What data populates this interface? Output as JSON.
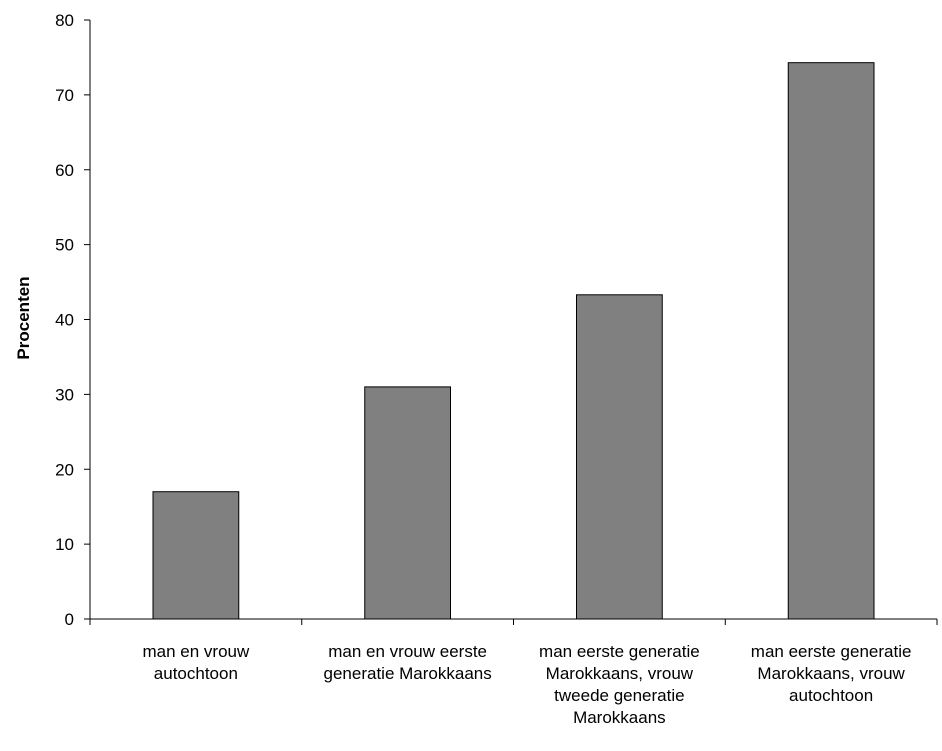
{
  "chart_data": {
    "type": "bar",
    "title": "",
    "xlabel": "",
    "ylabel": "Procenten",
    "ylim": [
      0,
      80
    ],
    "yticks": [
      0,
      10,
      20,
      30,
      40,
      50,
      60,
      70,
      80
    ],
    "grid": false,
    "categories": [
      [
        "man en vrouw",
        "autochtoon"
      ],
      [
        "man en vrouw eerste",
        "generatie Marokkaans"
      ],
      [
        "man eerste generatie",
        "Marokkaans, vrouw",
        "tweede generatie",
        "Marokkaans"
      ],
      [
        "man eerste generatie",
        "Marokkaans, vrouw",
        "autochtoon"
      ]
    ],
    "values": [
      17,
      31,
      43.3,
      74.3
    ],
    "bar_color": "#808080"
  }
}
